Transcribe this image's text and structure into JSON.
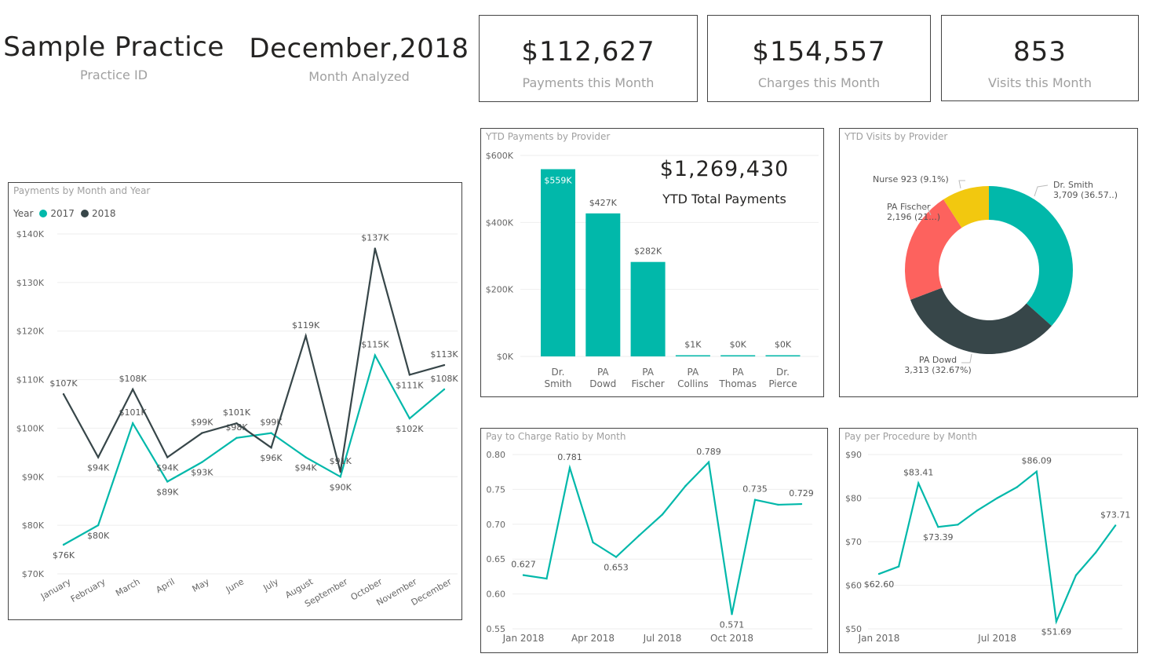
{
  "header": {
    "practice_name": "Sample Practice",
    "practice_label": "Practice ID",
    "month": "December,2018",
    "month_label": "Month Analyzed"
  },
  "kpis": [
    {
      "value": "$112,627",
      "label": "Payments this Month"
    },
    {
      "value": "$154,557",
      "label": "Charges this Month"
    },
    {
      "value": "853",
      "label": "Visits this Month"
    }
  ],
  "colors": {
    "teal": "#01B8AA",
    "dark": "#374649",
    "red": "#FD625E",
    "yellow": "#F2C80F"
  },
  "chart_data": [
    {
      "id": "payments_by_month",
      "type": "line",
      "title": "Payments by Month and Year",
      "legend_title": "Year",
      "legend": "top-left",
      "categories": [
        "January",
        "February",
        "March",
        "April",
        "May",
        "June",
        "July",
        "August",
        "September",
        "October",
        "November",
        "December"
      ],
      "yticks": [
        "$70K",
        "$80K",
        "$90K",
        "$100K",
        "$110K",
        "$120K",
        "$130K",
        "$140K"
      ],
      "ylim": [
        70,
        140
      ],
      "series": [
        {
          "name": "2017",
          "color": "#01B8AA",
          "values": [
            76,
            80,
            101,
            89,
            93,
            98,
            99,
            94,
            90,
            115,
            102,
            108
          ],
          "labels": [
            "$76K",
            "$80K",
            "$101K",
            "$89K",
            "$93K",
            "$98K",
            "$99K",
            "$94K",
            "$90K",
            "$115K",
            "$102K",
            "$108K"
          ]
        },
        {
          "name": "2018",
          "color": "#374649",
          "values": [
            107,
            94,
            108,
            94,
            99,
            101,
            96,
            119,
            91,
            137,
            111,
            113
          ],
          "labels": [
            "$107K",
            "$94K",
            "$108K",
            "$94K",
            "$99K",
            "$101K",
            "$96K",
            "$119K",
            "$91K",
            "$137K",
            "$111K",
            "$113K"
          ]
        }
      ]
    },
    {
      "id": "ytd_payments",
      "type": "bar",
      "title": "YTD Payments by Provider",
      "categories": [
        [
          "Dr.",
          "Smith"
        ],
        [
          "PA",
          "Dowd"
        ],
        [
          "PA",
          "Fischer"
        ],
        [
          "PA",
          "Collins"
        ],
        [
          "PA",
          "Thomas"
        ],
        [
          "Dr.",
          "Pierce"
        ]
      ],
      "values": [
        559,
        427,
        282,
        1,
        0,
        0
      ],
      "labels": [
        "$559K",
        "$427K",
        "$282K",
        "$1K",
        "$0K",
        "$0K"
      ],
      "yticks": [
        "$0K",
        "$200K",
        "$400K",
        "$600K"
      ],
      "ylim": [
        0,
        600
      ],
      "total_value": "$1,269,430",
      "total_label": "YTD Total Payments"
    },
    {
      "id": "ytd_visits",
      "type": "pie",
      "title": "YTD Visits by Provider",
      "slices": [
        {
          "name": "Dr. Smith",
          "value": 3709,
          "label": "3,709 (36.57..)",
          "color": "#01B8AA"
        },
        {
          "name": "PA Dowd",
          "value": 3313,
          "label": "3,313 (32.67%)",
          "color": "#374649"
        },
        {
          "name": "PA Fischer",
          "value": 2196,
          "label": "2,196 (21...)",
          "color": "#FD625E"
        },
        {
          "name": "Nurse",
          "value": 923,
          "label": "923 (9.1%)",
          "color": "#F2C80F"
        }
      ]
    },
    {
      "id": "pay_to_charge",
      "type": "line",
      "title": "Pay to Charge Ratio by Month",
      "xticks": [
        "Jan 2018",
        "Apr 2018",
        "Jul 2018",
        "Oct 2018"
      ],
      "yticks": [
        "0.55",
        "0.60",
        "0.65",
        "0.70",
        "0.75",
        "0.80"
      ],
      "ylim": [
        0.55,
        0.8
      ],
      "values": [
        0.627,
        0.622,
        0.781,
        0.674,
        0.653,
        0.684,
        0.714,
        0.755,
        0.789,
        0.571,
        0.735,
        0.728,
        0.729
      ],
      "labels": [
        "0.627",
        null,
        "0.781",
        null,
        "0.653",
        null,
        null,
        null,
        "0.789",
        "0.571",
        "0.735",
        null,
        "0.729"
      ]
    },
    {
      "id": "pay_per_procedure",
      "type": "line",
      "title": "Pay per Procedure by Month",
      "xticks": [
        "Jan 2018",
        "Jul 2018"
      ],
      "yticks": [
        "$50",
        "$60",
        "$70",
        "$80",
        "$90"
      ],
      "ylim": [
        50,
        90
      ],
      "values": [
        62.6,
        64.3,
        83.41,
        73.39,
        73.9,
        77.2,
        80.0,
        82.5,
        86.09,
        51.69,
        62.3,
        67.5,
        73.71
      ],
      "labels": [
        "$62.60",
        null,
        "$83.41",
        "$73.39",
        null,
        null,
        null,
        null,
        "$86.09",
        "$51.69",
        null,
        null,
        "$73.71"
      ]
    }
  ]
}
